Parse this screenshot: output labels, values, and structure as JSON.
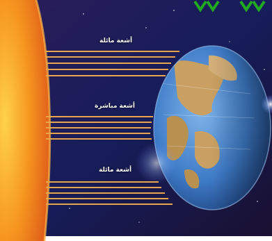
{
  "labels": {
    "upper_rays": "أشعة مائلة",
    "middle_rays": "أشعة مباشرة",
    "lower_rays": "أشعة مائلة"
  },
  "colors": {
    "sun": "#f6951f",
    "ray": "#e8a54a",
    "space": "#161d5a",
    "ocean": "#3e7bc7",
    "land": "#c9a062",
    "corner_mark": "#22aa22"
  },
  "icons": {
    "corner_marks": "double-chevron-down-icon"
  }
}
